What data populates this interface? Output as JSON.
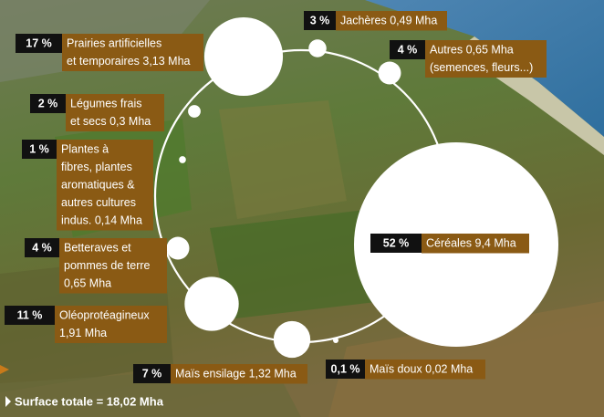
{
  "chart_data": {
    "type": "bubble",
    "categories": [
      [
        "Jachères 0,49 Mha"
      ],
      [
        "Autres 0,65 Mha",
        "(semences, fleurs...)"
      ],
      [
        "Prairies artificielles",
        "et temporaires 3,13 Mha"
      ],
      [
        "Légumes frais",
        "et secs 0,3 Mha"
      ],
      [
        "Plantes à",
        "fibres, plantes",
        "aromatiques &",
        "autres cultures",
        "indus. 0,14 Mha"
      ],
      [
        "Betteraves et",
        "pommes de terre",
        "0,65 Mha"
      ],
      [
        "Oléoprotéagineux",
        "1,91 Mha"
      ],
      [
        "Maïs ensilage 1,32 Mha"
      ],
      [
        "Maïs doux 0,02 Mha"
      ],
      [
        "Céréales 9,4 Mha"
      ]
    ],
    "values": [
      3,
      4,
      17,
      2,
      1,
      4,
      11,
      7,
      0.1,
      52
    ],
    "value_labels": [
      "3 %",
      "4 %",
      "17 %",
      "2 %",
      "1 %",
      "4 %",
      "11 %",
      "7 %",
      "0,1 %",
      "52 %"
    ],
    "color": "#ffffff",
    "annotation": "Surface totale = 18,02 Mha"
  }
}
